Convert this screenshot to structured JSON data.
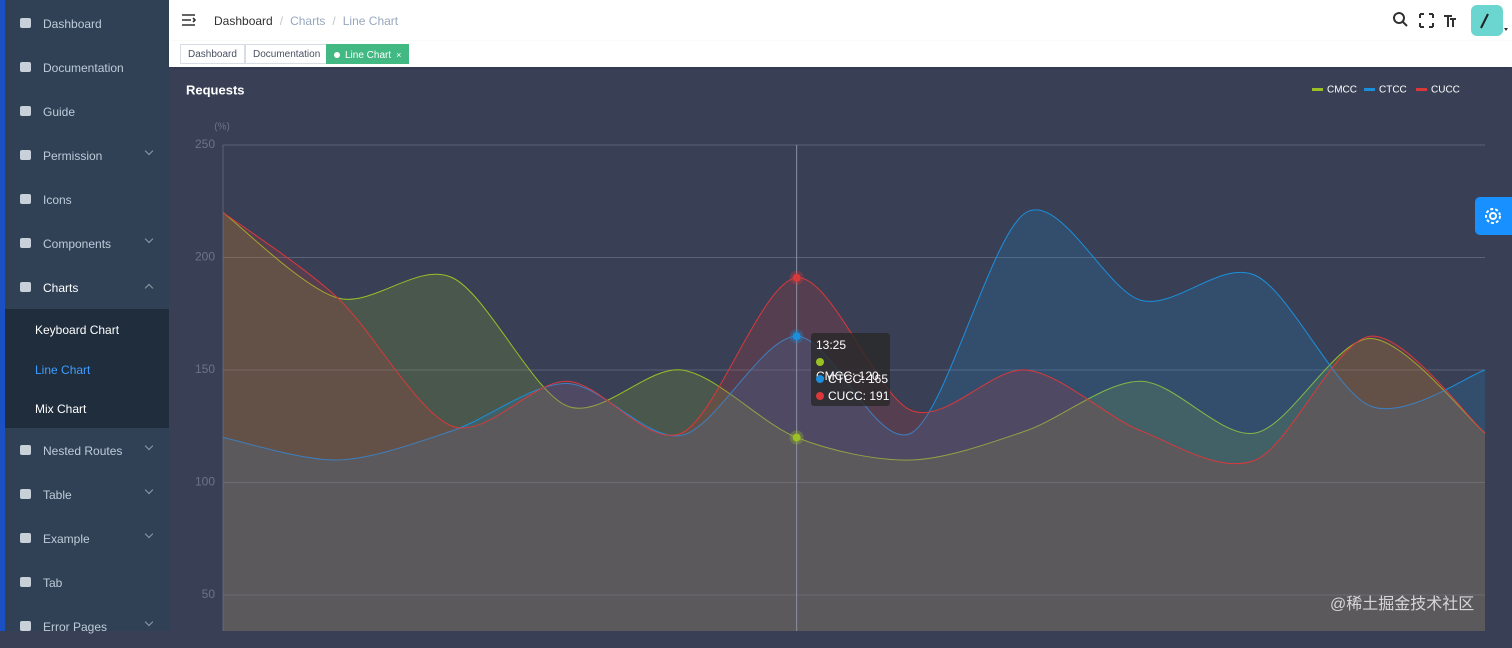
{
  "sidebar": {
    "menu": [
      {
        "label": "Dashboard"
      },
      {
        "label": "Documentation"
      },
      {
        "label": "Guide"
      },
      {
        "label": "Permission",
        "arrow": "down"
      },
      {
        "label": "Icons"
      },
      {
        "label": "Components",
        "arrow": "down"
      },
      {
        "label": "Charts",
        "arrow": "up",
        "children": [
          {
            "label": "Keyboard Chart"
          },
          {
            "label": "Line Chart",
            "active": true
          },
          {
            "label": "Mix Chart"
          }
        ]
      },
      {
        "label": "Nested Routes",
        "arrow": "down"
      },
      {
        "label": "Table",
        "arrow": "down"
      },
      {
        "label": "Example",
        "arrow": "down"
      },
      {
        "label": "Tab"
      },
      {
        "label": "Error Pages",
        "arrow": "down"
      }
    ]
  },
  "navbar": {
    "breadcrumb": [
      "Dashboard",
      "Charts",
      "Line Chart"
    ],
    "breadcrumb_separator": "/"
  },
  "tags": [
    {
      "label": "Dashboard"
    },
    {
      "label": "Documentation"
    },
    {
      "label": "Line Chart",
      "active": true,
      "close": "×"
    }
  ],
  "watermark": "@稀土掘金技术社区",
  "chart_data": {
    "type": "line",
    "title": "Requests",
    "y_label": "(%)",
    "categories": [
      null,
      null,
      null,
      null,
      null,
      "13:25",
      null,
      null,
      null,
      null,
      null,
      null
    ],
    "series": [
      {
        "name": "CMCC",
        "color": "#9bc026",
        "values": [
          220,
          182,
          191,
          134,
          150,
          120,
          110,
          123,
          145,
          122,
          164,
          122
        ]
      },
      {
        "name": "CTCC",
        "color": "#1b8fdc",
        "values": [
          120,
          110,
          123,
          144,
          121,
          165,
          122,
          220,
          181,
          192,
          134,
          150
        ]
      },
      {
        "name": "CUCC",
        "color": "#d9383a",
        "values": [
          220,
          182,
          125,
          145,
          122,
          191,
          132,
          150,
          123,
          110,
          165,
          122
        ]
      }
    ],
    "ylim": [
      34,
      250
    ],
    "yticks": [
      50,
      100,
      150,
      200,
      250
    ],
    "grid": true,
    "tooltip_index": 5,
    "tooltip_separator": ": "
  }
}
